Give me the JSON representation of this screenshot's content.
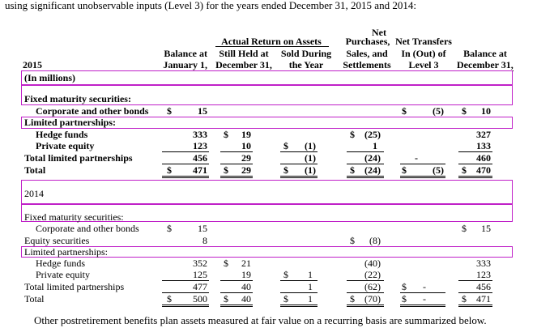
{
  "intro": "using significant unobservable inputs (Level 3) for the years ended December 31, 2015 and 2014:",
  "headers": {
    "bal_jan": [
      "Balance at",
      "January 1,"
    ],
    "actual_return_group": "Actual Return on Assets",
    "still_held": [
      "Still Held at",
      "December 31,"
    ],
    "sold_during": [
      "Sold During",
      "the Year"
    ],
    "net_purchases": [
      "Net",
      "Purchases,",
      "Sales, and",
      "Settlements"
    ],
    "net_transfers": [
      "Net Transfers",
      "In (Out) of",
      "Level 3"
    ],
    "bal_dec": [
      "Balance at",
      "December 31,"
    ]
  },
  "section_2015": {
    "year": "2015",
    "units": "(In millions)",
    "fixed_label": "Fixed maturity securities:",
    "corp_label": "Corporate and other bonds",
    "corp": {
      "bal_jan": "15",
      "transfers": "(5)",
      "bal_dec": "10"
    },
    "lp_label": "Limited partnerships:",
    "hedge_label": "Hedge funds",
    "hedge": {
      "bal_jan": "333",
      "still_held": "19",
      "purchases": "(25)",
      "bal_dec": "327"
    },
    "pe_label": "Private equity",
    "pe": {
      "bal_jan": "123",
      "still_held": "10",
      "sold": "(1)",
      "purchases": "1",
      "bal_dec": "133"
    },
    "tlp_label": "Total limited partnerships",
    "tlp": {
      "bal_jan": "456",
      "still_held": "29",
      "sold": "(1)",
      "purchases": "(24)",
      "transfers": "-",
      "bal_dec": "460"
    },
    "total_label": "Total",
    "total": {
      "bal_jan": "471",
      "still_held": "29",
      "sold": "(1)",
      "purchases": "(24)",
      "transfers": "(5)",
      "bal_dec": "470"
    }
  },
  "section_2014": {
    "year": "2014",
    "fixed_label": "Fixed maturity securities:",
    "corp_label": "Corporate and other bonds",
    "corp": {
      "bal_jan": "15",
      "bal_dec": "15"
    },
    "equity_label": "Equity securities",
    "equity": {
      "bal_jan": "8",
      "purchases": "(8)"
    },
    "lp_label": "Limited partnerships:",
    "hedge_label": "Hedge funds",
    "hedge": {
      "bal_jan": "352",
      "still_held": "21",
      "purchases": "(40)",
      "bal_dec": "333"
    },
    "pe_label": "Private equity",
    "pe": {
      "bal_jan": "125",
      "still_held": "19",
      "sold": "1",
      "purchases": "(22)",
      "bal_dec": "123"
    },
    "tlp_label": "Total limited partnerships",
    "tlp": {
      "bal_jan": "477",
      "still_held": "40",
      "sold": "1",
      "purchases": "(62)",
      "transfers": "-",
      "bal_dec": "456"
    },
    "total_label": "Total",
    "total": {
      "bal_jan": "500",
      "still_held": "40",
      "sold": "1",
      "purchases": "(70)",
      "transfers": "-",
      "bal_dec": "471"
    }
  },
  "currency_symbol": "$",
  "footer": "Other postretirement benefits plan assets measured at fair value on a recurring basis are summarized below.",
  "highlight_color": "#c020c8"
}
